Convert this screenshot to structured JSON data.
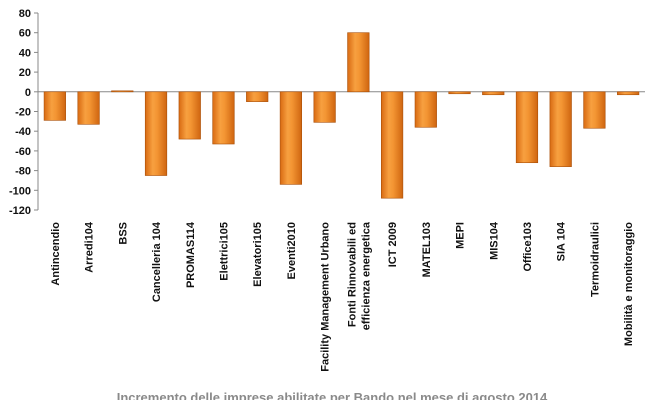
{
  "chart_data": {
    "type": "bar",
    "title": "Incremento delle imprese abilitate per Bando nel mese di agosto 2014",
    "xlabel": "",
    "ylabel": "",
    "ylim": [
      -120,
      80
    ],
    "yticks": [
      80,
      60,
      40,
      20,
      0,
      -20,
      -40,
      -60,
      -80,
      -100,
      -120
    ],
    "grid": false,
    "legend": "none",
    "bar_color": "#f08a24",
    "categories": [
      "Antincendio",
      "Arredi104",
      "BSS",
      "Cancelleria 104",
      "PROMAS114",
      "Elettrici105",
      "Elevatori105",
      "Eventi2010",
      "Facility Management Urbano",
      "Fonti Rinnovabili ed efficienza energetica",
      "ICT 2009",
      "MATEL103",
      "MEPI",
      "MIS104",
      "Office103",
      "SIA 104",
      "Termoidraulici",
      "Mobilità e monitoraggio"
    ],
    "series": [
      {
        "values": [
          -29,
          -33,
          1,
          -85,
          -48,
          -53,
          -10,
          -94,
          -31,
          60,
          -108,
          -36,
          -2,
          -3,
          -72,
          -76,
          -37,
          -3
        ]
      }
    ]
  }
}
